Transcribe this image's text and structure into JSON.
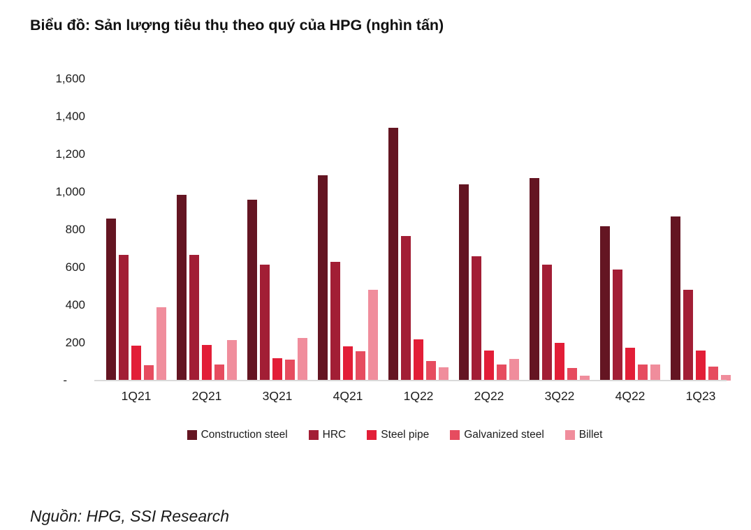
{
  "title": "Biểu đồ: Sản lượng tiêu thụ theo quý của HPG (nghìn tấn)",
  "source": "Nguồn: HPG, SSI Research",
  "colors": {
    "axis": "#d9d9d9",
    "text": "#1b1b1b"
  },
  "chart_data": {
    "type": "bar",
    "title": "Biểu đồ: Sản lượng tiêu thụ theo quý của HPG (nghìn tấn)",
    "xlabel": "",
    "ylabel": "",
    "ylim": [
      0,
      1600
    ],
    "grid": false,
    "legend_position": "bottom",
    "categories": [
      "1Q21",
      "2Q21",
      "3Q21",
      "4Q21",
      "1Q22",
      "2Q22",
      "3Q22",
      "4Q22",
      "1Q23"
    ],
    "series": [
      {
        "name": "Construction steel",
        "color": "#641522",
        "values": [
          860,
          985,
          960,
          1090,
          1340,
          1040,
          1075,
          820,
          870
        ]
      },
      {
        "name": "HRC",
        "color": "#a21e35",
        "values": [
          665,
          665,
          615,
          630,
          765,
          660,
          615,
          590,
          480
        ]
      },
      {
        "name": "Steel pipe",
        "color": "#e21e37",
        "values": [
          185,
          190,
          120,
          180,
          220,
          160,
          200,
          175,
          160
        ]
      },
      {
        "name": "Galvanized steel",
        "color": "#e64c5f",
        "values": [
          80,
          85,
          110,
          155,
          105,
          85,
          65,
          85,
          75
        ]
      },
      {
        "name": "Billet",
        "color": "#f08d9c",
        "values": [
          390,
          215,
          225,
          480,
          70,
          115,
          25,
          85,
          30
        ]
      }
    ],
    "y_ticks": [
      {
        "value": 1600,
        "label": "1,600"
      },
      {
        "value": 1400,
        "label": "1,400"
      },
      {
        "value": 1200,
        "label": "1,200"
      },
      {
        "value": 1000,
        "label": "1,000"
      },
      {
        "value": 800,
        "label": "800"
      },
      {
        "value": 600,
        "label": "600"
      },
      {
        "value": 400,
        "label": "400"
      },
      {
        "value": 200,
        "label": "200"
      },
      {
        "value": 0,
        "label": "-"
      }
    ]
  }
}
